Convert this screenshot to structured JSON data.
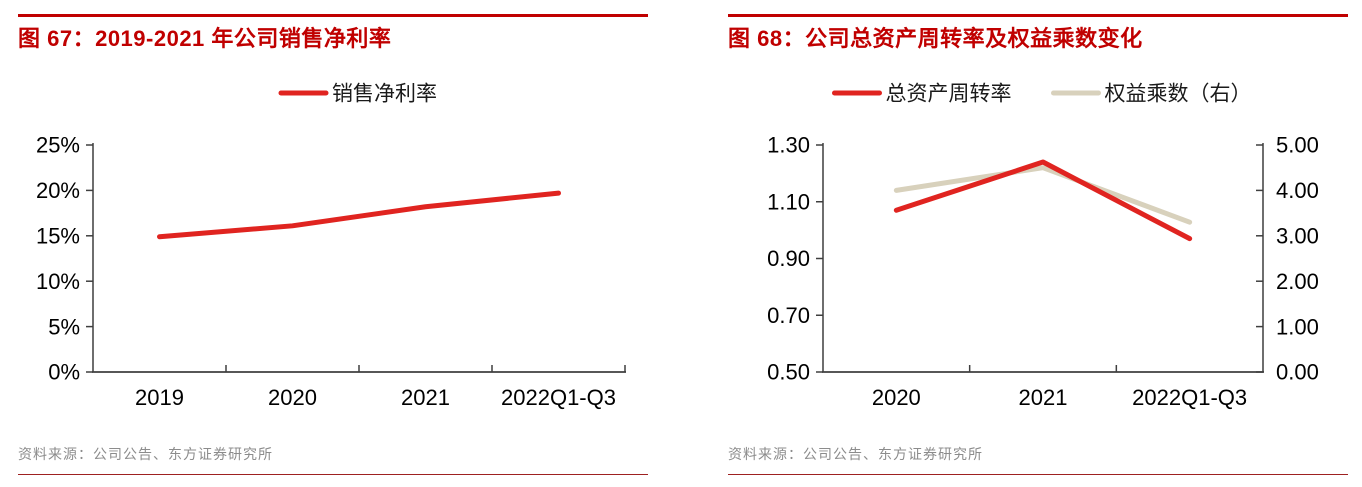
{
  "colors": {
    "accent_red": "#c00000",
    "series_red": "#e02420",
    "series_tan": "#d8d1bc",
    "axis_gray": "#3f3f3f",
    "source_text_gray": "#8c8c8c"
  },
  "chart_data": [
    {
      "type": "line",
      "title": "图 67：2019-2021 年公司销售净利率",
      "categories": [
        "2019",
        "2020",
        "2021",
        "2022Q1-Q3"
      ],
      "series": [
        {
          "name": "销售净利率",
          "color": "#e02420",
          "axis": "left",
          "values": [
            14.9,
            16.1,
            18.2,
            19.7
          ]
        }
      ],
      "y_axis": {
        "min": 0,
        "max": 25,
        "ticks": [
          {
            "v": 0,
            "t": "0%"
          },
          {
            "v": 5,
            "t": "5%"
          },
          {
            "v": 10,
            "t": "10%"
          },
          {
            "v": 15,
            "t": "15%"
          },
          {
            "v": 20,
            "t": "20%"
          },
          {
            "v": 25,
            "t": "25%"
          }
        ]
      },
      "grid": false,
      "legend_position": "top",
      "source": "资料来源：公司公告、东方证券研究所"
    },
    {
      "type": "line",
      "title": "图 68：公司总资产周转率及权益乘数变化",
      "categories": [
        "2020",
        "2021",
        "2022Q1-Q3"
      ],
      "series": [
        {
          "name": "总资产周转率",
          "color": "#e02420",
          "axis": "left",
          "values": [
            1.07,
            1.24,
            0.97
          ]
        },
        {
          "name": "权益乘数（右）",
          "color": "#d8d1bc",
          "axis": "right",
          "values": [
            4.0,
            4.5,
            3.3
          ]
        }
      ],
      "y_axis_left": {
        "min": 0.5,
        "max": 1.3,
        "ticks": [
          {
            "v": 0.5,
            "t": "0.50"
          },
          {
            "v": 0.7,
            "t": "0.70"
          },
          {
            "v": 0.9,
            "t": "0.90"
          },
          {
            "v": 1.1,
            "t": "1.10"
          },
          {
            "v": 1.3,
            "t": "1.30"
          }
        ]
      },
      "y_axis_right": {
        "min": 0,
        "max": 5,
        "ticks": [
          {
            "v": 0,
            "t": "0.00"
          },
          {
            "v": 1,
            "t": "1.00"
          },
          {
            "v": 2,
            "t": "2.00"
          },
          {
            "v": 3,
            "t": "3.00"
          },
          {
            "v": 4,
            "t": "4.00"
          },
          {
            "v": 5,
            "t": "5.00"
          }
        ]
      },
      "grid": false,
      "legend_position": "top",
      "source": "资料来源：公司公告、东方证券研究所"
    }
  ]
}
